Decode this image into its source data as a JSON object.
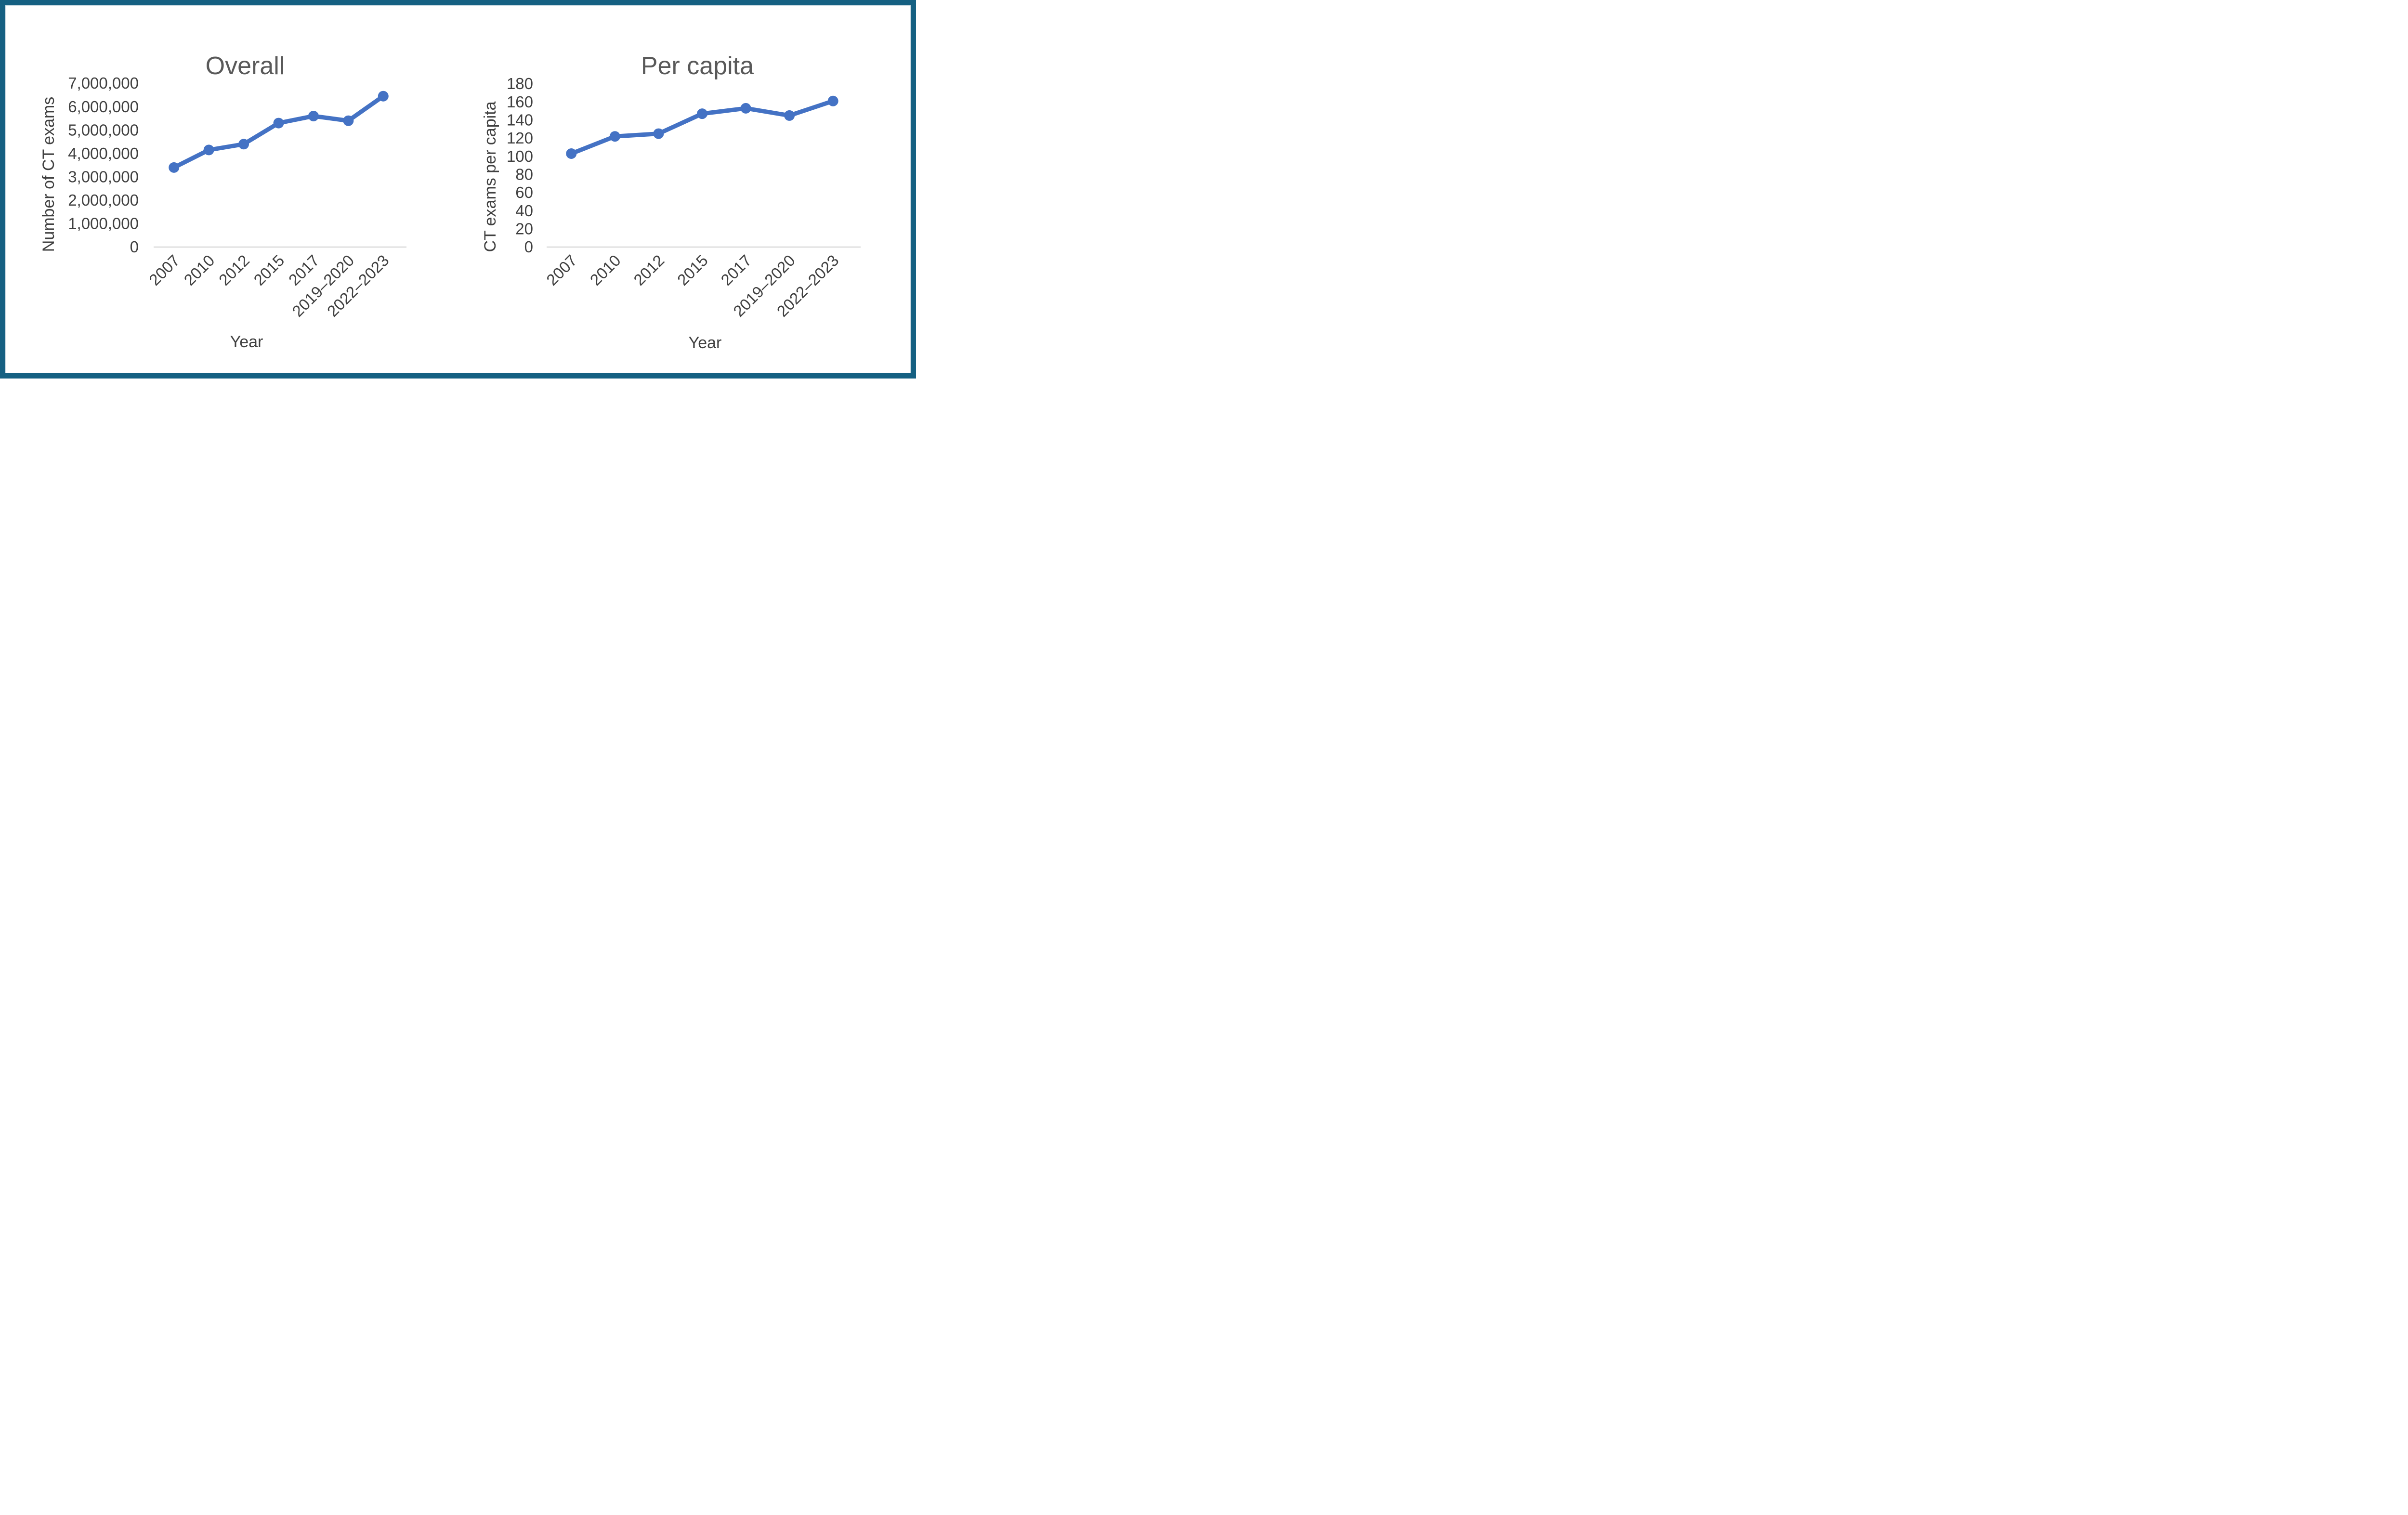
{
  "style": {
    "frame_border_color": "#156082",
    "canvas_color": "#FFFFFF",
    "accent_line_color": "#4472C4",
    "title_color": "#595959",
    "axis_text_color": "#404040",
    "axis_line_color": "#D9D9D9"
  },
  "chart_data": [
    {
      "type": "line",
      "title": "Overall",
      "x_axis_title": "Year",
      "y_axis_title": "Number of CT exams",
      "categories": [
        "2007",
        "2010",
        "2012",
        "2015",
        "2017",
        "2019–2020",
        "2022–2023"
      ],
      "values": [
        3400000,
        4150000,
        4400000,
        5300000,
        5600000,
        5400000,
        6450000
      ],
      "ylim": [
        0,
        7000000
      ],
      "ytick_interval": 1000000,
      "ytick_labels": [
        "0",
        "1,000,000",
        "2,000,000",
        "3,000,000",
        "4,000,000",
        "5,000,000",
        "6,000,000",
        "7,000,000"
      ],
      "line_color": "#4472C4",
      "marker": "circle",
      "grid": false,
      "legend": "none"
    },
    {
      "type": "line",
      "title": "Per capita",
      "x_axis_title": "Year",
      "y_axis_title": "CT exams per capita",
      "categories": [
        "2007",
        "2010",
        "2012",
        "2015",
        "2017",
        "2019–2020",
        "2022–2023"
      ],
      "values": [
        103,
        122,
        125,
        147,
        153,
        145,
        161
      ],
      "ylim": [
        0,
        180
      ],
      "ytick_interval": 20,
      "ytick_labels": [
        "0",
        "20",
        "40",
        "60",
        "80",
        "100",
        "120",
        "140",
        "160",
        "180"
      ],
      "line_color": "#4472C4",
      "marker": "circle",
      "grid": false,
      "legend": "none"
    }
  ]
}
